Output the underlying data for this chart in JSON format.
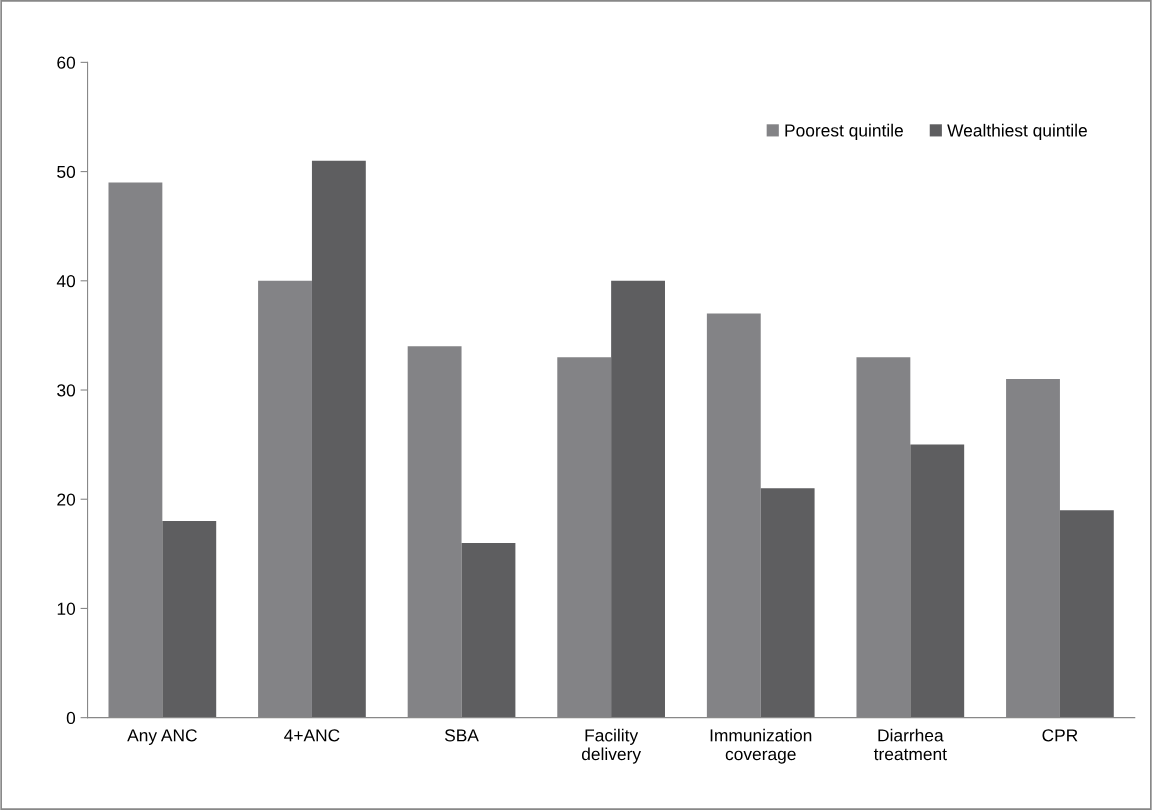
{
  "chart_data": {
    "type": "bar",
    "categories": [
      "Any ANC",
      "4+ANC",
      "SBA",
      "Facility\ndelivery",
      "Immunization\ncoverage",
      "Diarrhea\ntreatment",
      "CPR"
    ],
    "series": [
      {
        "name": "Poorest quintile",
        "color": "#838386",
        "values": [
          49,
          40,
          34,
          33,
          37,
          33,
          31
        ]
      },
      {
        "name": "Wealthiest quintile",
        "color": "#5e5e60",
        "values": [
          18,
          51,
          16,
          40,
          21,
          25,
          19
        ]
      }
    ],
    "ylim": [
      0,
      60
    ],
    "yticks": [
      0,
      10,
      20,
      30,
      40,
      50,
      60
    ],
    "grid": false,
    "legend": "top right"
  }
}
